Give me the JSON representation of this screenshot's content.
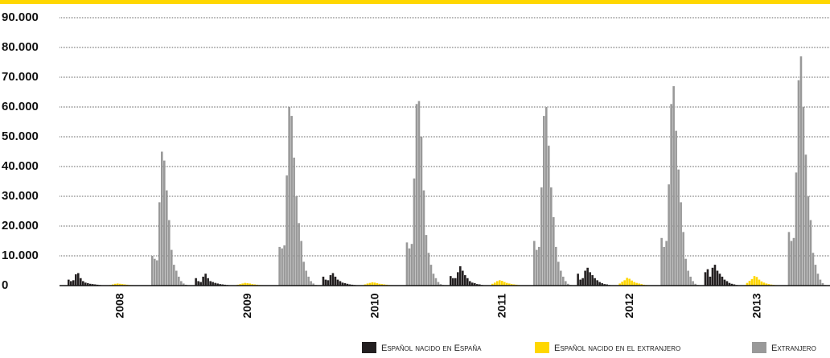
{
  "chart_data": {
    "type": "bar",
    "categories": [
      "2008",
      "2009",
      "2010",
      "2011",
      "2012",
      "2013"
    ],
    "ylim": [
      0,
      90000
    ],
    "yticks": [
      {
        "value": 0,
        "label": "0"
      },
      {
        "value": 10000,
        "label": "10.000"
      },
      {
        "value": 20000,
        "label": "20.000"
      },
      {
        "value": 30000,
        "label": "30.000"
      },
      {
        "value": 40000,
        "label": "40.000"
      },
      {
        "value": 50000,
        "label": "50.000"
      },
      {
        "value": 60000,
        "label": "60.000"
      },
      {
        "value": 70000,
        "label": "70.000"
      },
      {
        "value": 80000,
        "label": "80.000"
      },
      {
        "value": 90000,
        "label": "90.000"
      }
    ],
    "grid": true,
    "series": [
      {
        "name": "Español nacido en España",
        "color": "#231f20",
        "values": [
          [
            2000,
            1500,
            1800,
            3800,
            4200,
            2500,
            1500,
            1000,
            800,
            600,
            500,
            400,
            300,
            200,
            100,
            50
          ],
          [
            2500,
            1500,
            1200,
            3000,
            4000,
            2500,
            1500,
            1200,
            900,
            700,
            500,
            400,
            300,
            200,
            100,
            50
          ],
          [
            3000,
            2000,
            1800,
            3500,
            4200,
            3000,
            2000,
            1500,
            1000,
            800,
            600,
            400,
            300,
            200,
            100,
            50
          ],
          [
            3200,
            2500,
            2500,
            4500,
            6500,
            5000,
            3500,
            2500,
            1500,
            1000,
            800,
            500,
            400,
            200,
            100,
            50
          ],
          [
            4000,
            2000,
            2500,
            5000,
            6000,
            4500,
            3500,
            2500,
            1800,
            1200,
            800,
            500,
            400,
            200,
            100,
            50
          ],
          [
            4500,
            5500,
            3000,
            6000,
            7000,
            5000,
            4000,
            3000,
            2000,
            1500,
            900,
            600,
            400,
            200,
            100,
            50
          ]
        ]
      },
      {
        "name": "Español nacido en el extranjero",
        "color": "#ffd700",
        "values": [
          [
            200,
            400,
            600,
            700,
            600,
            500,
            400,
            300,
            200,
            150,
            100,
            80,
            60,
            40,
            20,
            10
          ],
          [
            300,
            500,
            700,
            900,
            800,
            700,
            500,
            400,
            300,
            200,
            150,
            100,
            80,
            50,
            30,
            10
          ],
          [
            400,
            700,
            900,
            1100,
            1000,
            800,
            600,
            500,
            400,
            300,
            200,
            150,
            100,
            60,
            30,
            10
          ],
          [
            600,
            1000,
            1500,
            1800,
            1600,
            1200,
            900,
            700,
            500,
            400,
            300,
            200,
            120,
            80,
            40,
            10
          ],
          [
            700,
            1300,
            1800,
            2600,
            2300,
            1700,
            1200,
            900,
            700,
            500,
            300,
            200,
            150,
            80,
            40,
            10
          ],
          [
            900,
            1600,
            2200,
            3200,
            2900,
            2000,
            1400,
            1000,
            700,
            500,
            350,
            250,
            150,
            80,
            40,
            10
          ]
        ]
      },
      {
        "name": "Extranjero",
        "color": "#999999",
        "values": [
          [
            10000,
            9000,
            8500,
            28000,
            45000,
            42000,
            32000,
            22000,
            12000,
            7000,
            5000,
            3000,
            1500,
            700,
            300,
            100
          ],
          [
            13000,
            12500,
            13500,
            37000,
            60000,
            57000,
            43000,
            30000,
            21000,
            15000,
            8000,
            5000,
            3000,
            1500,
            700,
            200
          ],
          [
            14500,
            12500,
            14000,
            36000,
            61000,
            62000,
            50000,
            32000,
            17000,
            11000,
            7000,
            4000,
            2500,
            1200,
            500,
            200
          ],
          [
            15000,
            12000,
            13000,
            33000,
            57000,
            60000,
            47000,
            33000,
            23000,
            13000,
            8000,
            5000,
            3000,
            1500,
            600,
            200
          ],
          [
            16000,
            13000,
            15000,
            34000,
            61000,
            67000,
            52000,
            39000,
            28000,
            18000,
            9000,
            5000,
            3000,
            1500,
            600,
            200
          ],
          [
            18000,
            15000,
            16000,
            38000,
            69000,
            77000,
            60000,
            44000,
            30000,
            22000,
            11000,
            7000,
            4000,
            2000,
            800,
            200
          ]
        ]
      }
    ]
  }
}
